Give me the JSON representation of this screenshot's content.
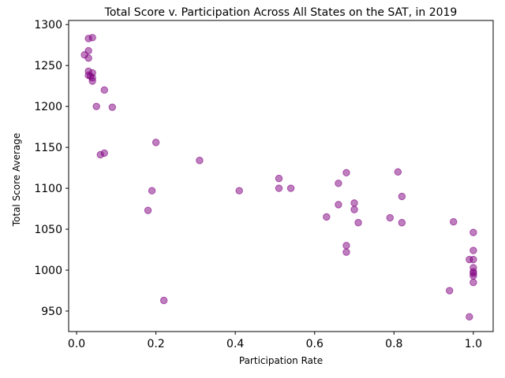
{
  "chart_data": {
    "type": "scatter",
    "title": "Total Score v. Participation Across All States on the SAT, in 2019",
    "xlabel": "Participation Rate",
    "ylabel": "Total Score Average",
    "xlim": [
      -0.02,
      1.05
    ],
    "ylim": [
      925,
      1305
    ],
    "xticks": [
      0.0,
      0.2,
      0.4,
      0.6,
      0.8,
      1.0
    ],
    "xtick_labels": [
      "0.0",
      "0.2",
      "0.4",
      "0.6",
      "0.8",
      "1.0"
    ],
    "yticks": [
      950,
      1000,
      1050,
      1100,
      1150,
      1200,
      1250,
      1300
    ],
    "ytick_labels": [
      "950",
      "1000",
      "1050",
      "1100",
      "1150",
      "1200",
      "1250",
      "1300"
    ],
    "grid": false,
    "marker_color": "#800080",
    "series": [
      {
        "points": [
          {
            "x": 0.03,
            "y": 1283
          },
          {
            "x": 0.04,
            "y": 1284
          },
          {
            "x": 0.03,
            "y": 1268
          },
          {
            "x": 0.02,
            "y": 1263
          },
          {
            "x": 0.03,
            "y": 1259
          },
          {
            "x": 0.03,
            "y": 1243
          },
          {
            "x": 0.04,
            "y": 1241
          },
          {
            "x": 0.03,
            "y": 1238
          },
          {
            "x": 0.035,
            "y": 1237
          },
          {
            "x": 0.04,
            "y": 1235
          },
          {
            "x": 0.04,
            "y": 1231
          },
          {
            "x": 0.07,
            "y": 1220
          },
          {
            "x": 0.05,
            "y": 1200
          },
          {
            "x": 0.09,
            "y": 1199
          },
          {
            "x": 0.2,
            "y": 1156
          },
          {
            "x": 0.07,
            "y": 1143
          },
          {
            "x": 0.06,
            "y": 1141
          },
          {
            "x": 0.31,
            "y": 1134
          },
          {
            "x": 0.51,
            "y": 1112
          },
          {
            "x": 0.51,
            "y": 1100
          },
          {
            "x": 0.54,
            "y": 1100
          },
          {
            "x": 0.41,
            "y": 1097
          },
          {
            "x": 0.19,
            "y": 1097
          },
          {
            "x": 0.18,
            "y": 1073
          },
          {
            "x": 0.22,
            "y": 963
          },
          {
            "x": 0.68,
            "y": 1119
          },
          {
            "x": 0.81,
            "y": 1120
          },
          {
            "x": 0.66,
            "y": 1106
          },
          {
            "x": 0.82,
            "y": 1090
          },
          {
            "x": 0.7,
            "y": 1082
          },
          {
            "x": 0.66,
            "y": 1080
          },
          {
            "x": 0.7,
            "y": 1074
          },
          {
            "x": 0.63,
            "y": 1065
          },
          {
            "x": 0.79,
            "y": 1064
          },
          {
            "x": 0.71,
            "y": 1058
          },
          {
            "x": 0.82,
            "y": 1058
          },
          {
            "x": 0.95,
            "y": 1059
          },
          {
            "x": 0.68,
            "y": 1030
          },
          {
            "x": 0.68,
            "y": 1022
          },
          {
            "x": 1.0,
            "y": 1046
          },
          {
            "x": 1.0,
            "y": 1024
          },
          {
            "x": 0.99,
            "y": 1013
          },
          {
            "x": 1.0,
            "y": 1013
          },
          {
            "x": 1.0,
            "y": 1003
          },
          {
            "x": 1.0,
            "y": 998
          },
          {
            "x": 1.0,
            "y": 996
          },
          {
            "x": 1.0,
            "y": 993
          },
          {
            "x": 1.0,
            "y": 985
          },
          {
            "x": 0.94,
            "y": 975
          },
          {
            "x": 0.99,
            "y": 943
          }
        ]
      }
    ]
  }
}
